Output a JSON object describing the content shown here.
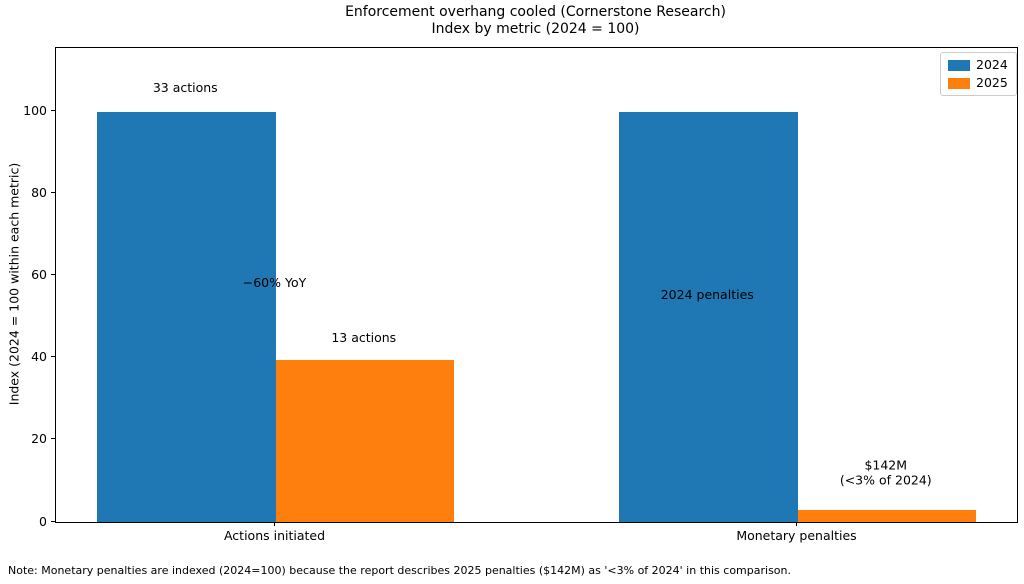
{
  "figure": {
    "title": "Enforcement overhang cooled (Cornerstone Research)",
    "subtitle": "Index by metric (2024 = 100)",
    "note": "Note: Monetary penalties are indexed (2024=100) because the report describes 2025 penalties ($142M) as '<3% of 2024' in this comparison."
  },
  "chart_data": {
    "type": "bar",
    "title": "Enforcement overhang cooled (Cornerstone Research)",
    "subtitle": "Index by metric (2024 = 100)",
    "categories": [
      "Actions initiated",
      "Monetary penalties"
    ],
    "series": [
      {
        "name": "2024",
        "color": "#1f77b4",
        "values": [
          100,
          100
        ]
      },
      {
        "name": "2025",
        "color": "#ff7f0e",
        "values": [
          39.4,
          2.9
        ]
      }
    ],
    "xlabel": "",
    "ylabel": "Index (2024 = 100 within each metric)",
    "ylim": [
      0,
      115.6
    ],
    "yticks": [
      0,
      20,
      40,
      60,
      80,
      100
    ],
    "grid": false,
    "legend_position": "upper right",
    "annotations": [
      {
        "text": "33 actions",
        "anchor": "bar",
        "category": 0,
        "series": 0,
        "y": 105.6
      },
      {
        "text": "−60% YoY",
        "anchor": "group",
        "category": 0,
        "series": null,
        "y": 58.1
      },
      {
        "text": "13 actions",
        "anchor": "bar",
        "category": 0,
        "series": 1,
        "y": 44.7
      },
      {
        "text": "2024 penalties",
        "anchor": "bar",
        "category": 1,
        "series": 0,
        "y": 55.0
      },
      {
        "text": "$142M\n(<3% of 2024)",
        "anchor": "bar",
        "category": 1,
        "series": 1,
        "y": 11.7
      }
    ]
  }
}
